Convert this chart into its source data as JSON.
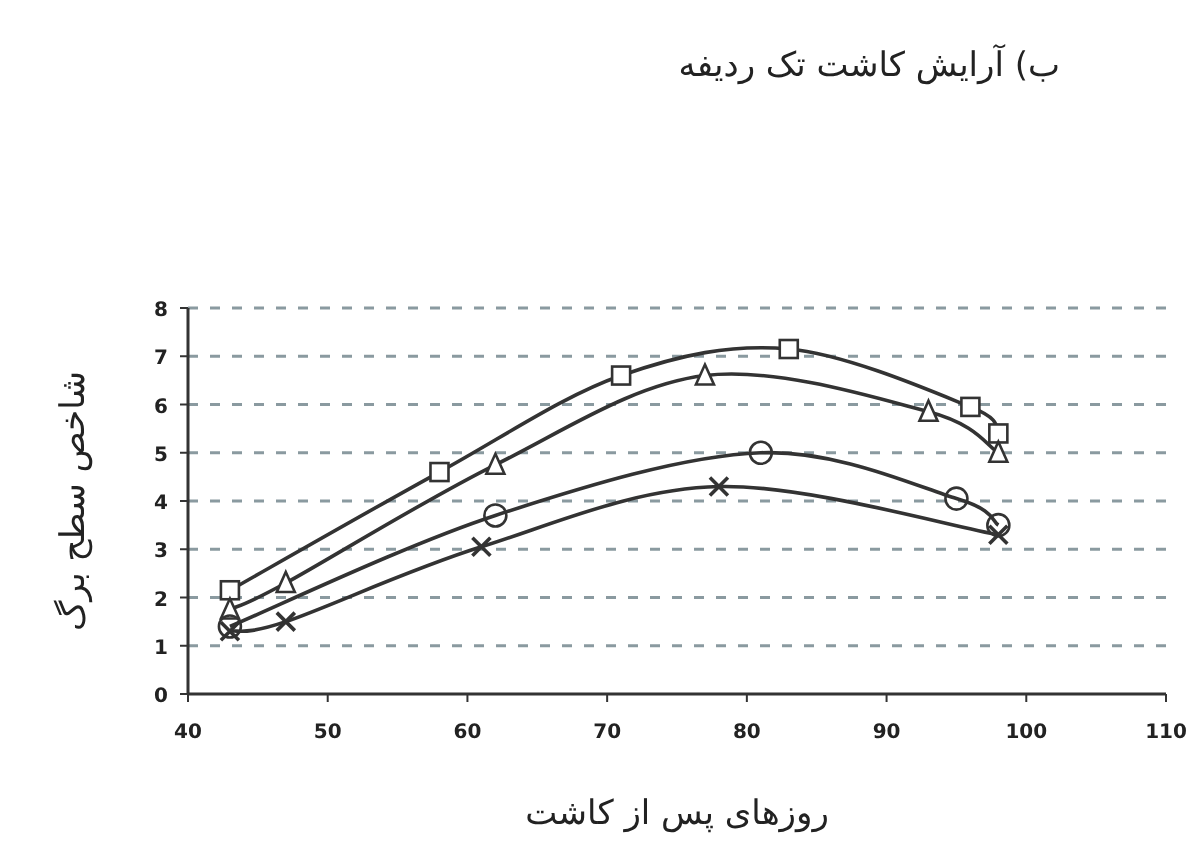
{
  "chart_data": {
    "type": "line",
    "title": "ب) آرایش کاشت تک ردیفه",
    "xlabel": "روزهای پس از کاشت",
    "ylabel": "شاخص سطح برگ",
    "xlim": [
      40,
      110
    ],
    "xticks": [
      40,
      50,
      60,
      70,
      80,
      90,
      100,
      110
    ],
    "ylim": [
      0,
      8
    ],
    "yticks": [
      0,
      1,
      2,
      3,
      4,
      5,
      6,
      7,
      8
    ],
    "grid": "y",
    "line_style": "solid",
    "series": [
      {
        "color": "#333333",
        "marker": "square",
        "x": [
          43,
          58,
          71,
          83,
          96,
          98
        ],
        "values": [
          2.15,
          4.6,
          6.6,
          7.15,
          5.95,
          5.4
        ]
      },
      {
        "color": "#333333",
        "marker": "triangle",
        "x": [
          43,
          47,
          62,
          77,
          93,
          98
        ],
        "values": [
          1.75,
          2.3,
          4.75,
          6.6,
          5.85,
          5.0
        ]
      },
      {
        "color": "#333333",
        "marker": "circle",
        "x": [
          43,
          62,
          81,
          95,
          98
        ],
        "values": [
          1.4,
          3.7,
          5.0,
          4.05,
          3.5
        ]
      },
      {
        "color": "#333333",
        "marker": "cross",
        "x": [
          43,
          47,
          61,
          78,
          98
        ],
        "values": [
          1.3,
          1.5,
          3.05,
          4.3,
          3.3
        ]
      }
    ]
  }
}
